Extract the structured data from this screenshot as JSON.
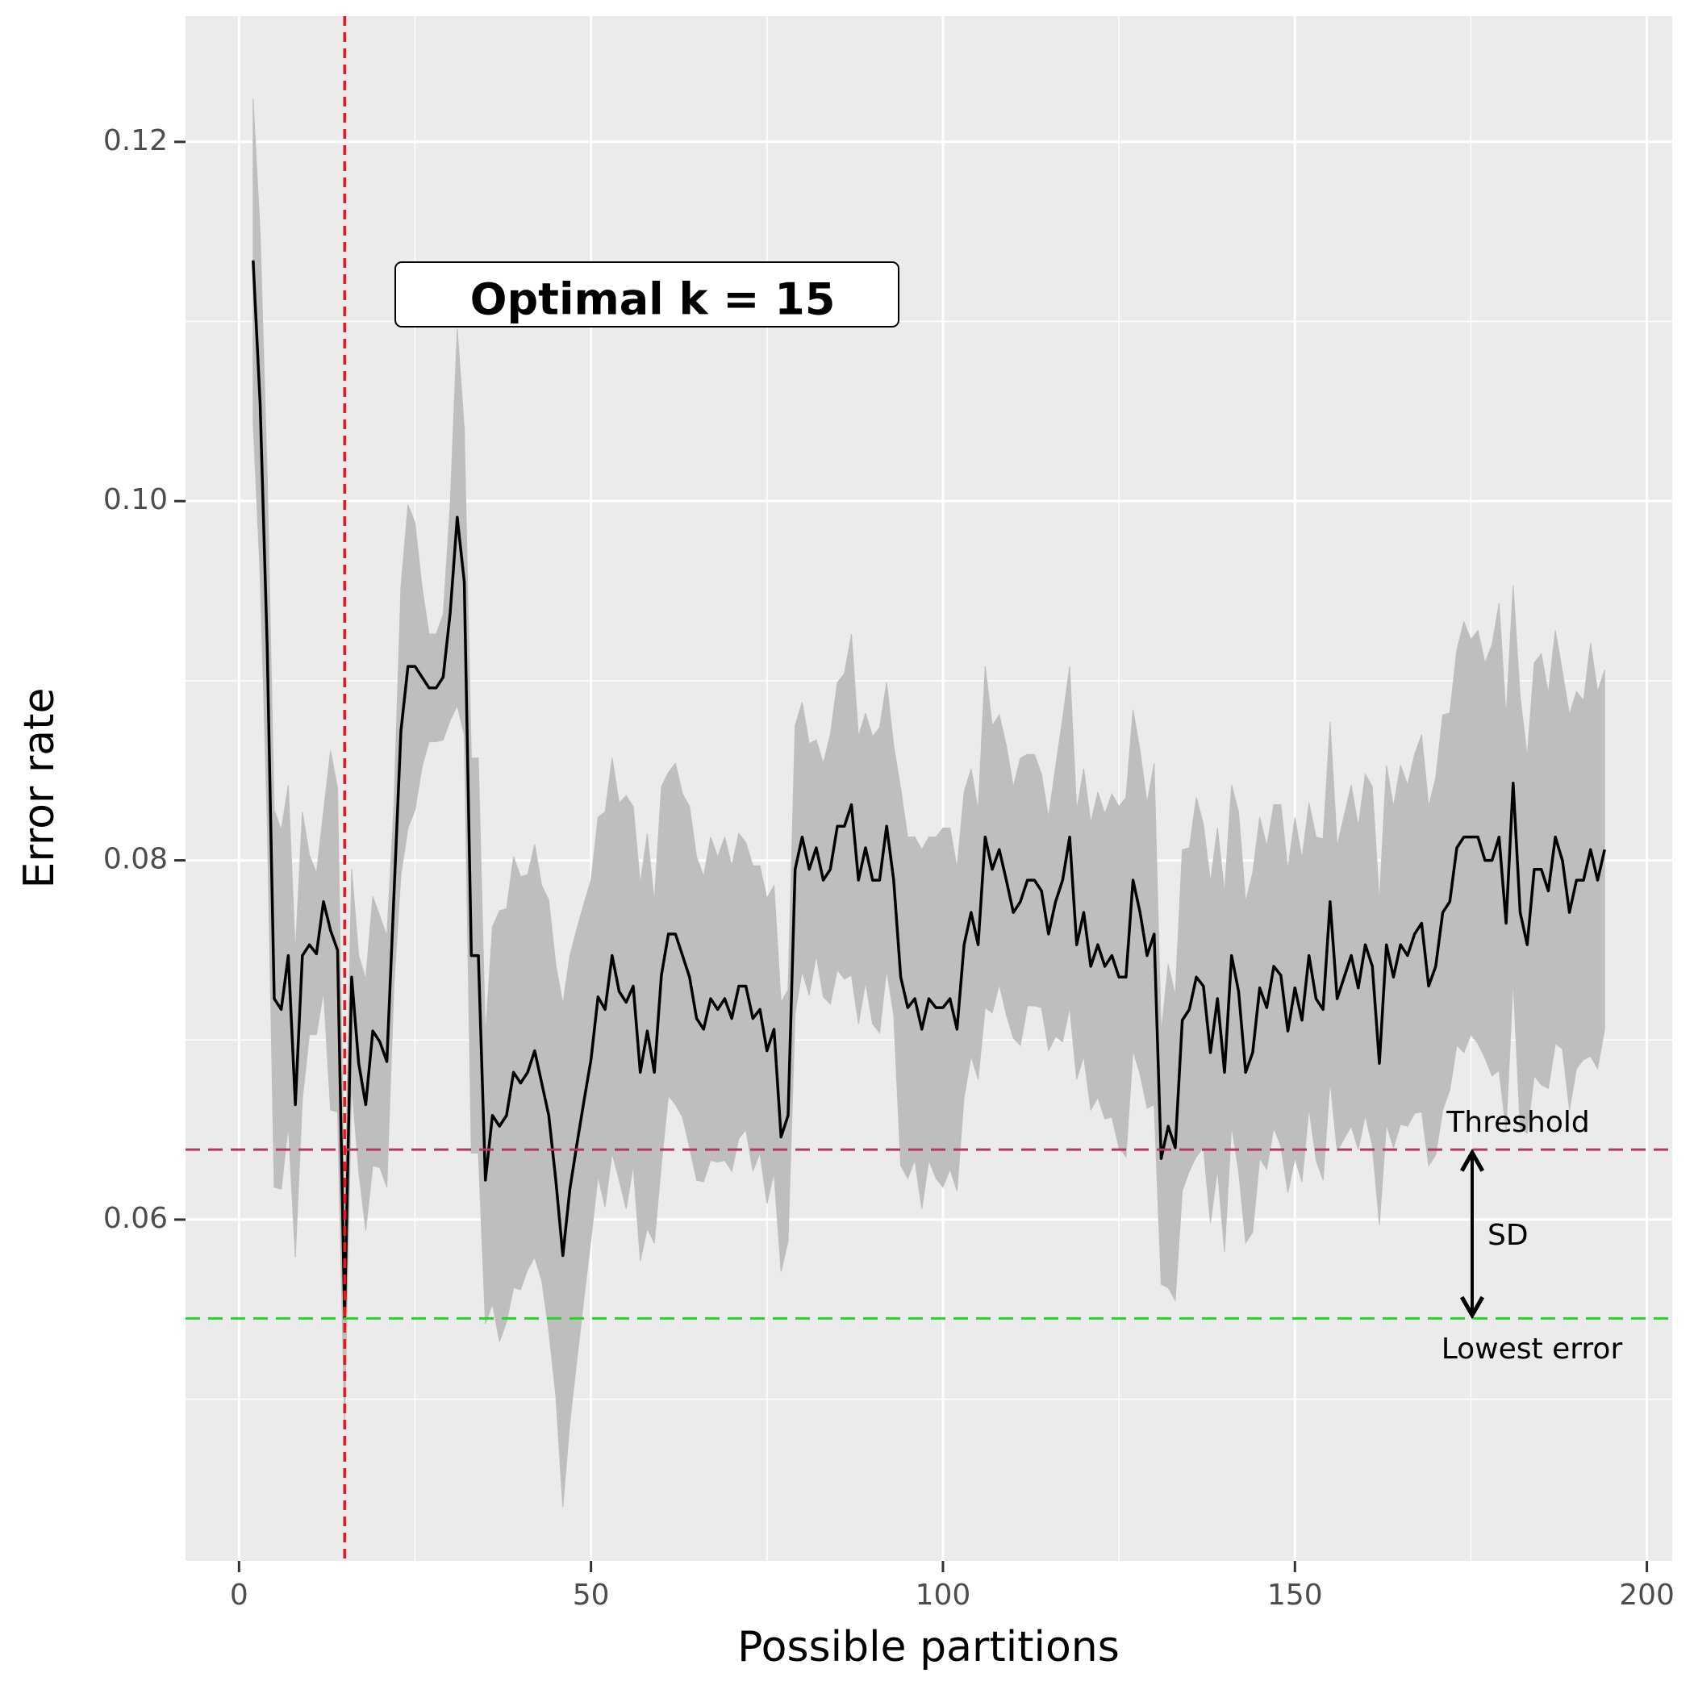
{
  "chart_data": {
    "type": "line",
    "x_label": "Possible partitions",
    "y_label": "Error rate",
    "x": [
      2,
      3,
      4,
      5,
      6,
      7,
      8,
      9,
      10,
      11,
      12,
      13,
      14,
      15,
      16,
      17,
      18,
      19,
      20,
      21,
      22,
      23,
      24,
      25,
      26,
      27,
      28,
      29,
      30,
      31,
      32,
      33,
      34,
      35,
      36,
      37,
      38,
      39,
      40,
      41,
      42,
      43,
      44,
      45,
      46,
      47,
      48,
      49,
      50,
      51,
      52,
      53,
      54,
      55,
      56,
      57,
      58,
      59,
      60,
      61,
      62,
      63,
      64,
      65,
      66,
      67,
      68,
      69,
      70,
      71,
      72,
      73,
      74,
      75,
      76,
      77,
      78,
      79,
      80,
      81,
      82,
      83,
      84,
      85,
      86,
      87,
      88,
      89,
      90,
      91,
      92,
      93,
      94,
      95,
      96,
      97,
      98,
      99,
      100,
      101,
      102,
      103,
      104,
      105,
      106,
      107,
      108,
      109,
      110,
      111,
      112,
      113,
      114,
      115,
      116,
      117,
      118,
      119,
      120,
      121,
      122,
      123,
      124,
      125,
      126,
      127,
      128,
      129,
      130,
      131,
      132,
      133,
      134,
      135,
      136,
      137,
      138,
      139,
      140,
      141,
      142,
      143,
      144,
      145,
      146,
      147,
      148,
      149,
      150,
      151,
      152,
      153,
      154,
      155,
      156,
      157,
      158,
      159,
      160,
      161,
      162,
      163,
      164,
      165,
      166,
      167,
      168,
      169,
      170,
      171,
      172,
      173,
      174,
      175,
      176,
      177,
      178,
      179,
      180,
      181,
      182,
      183,
      184,
      185,
      186,
      187,
      188,
      189,
      190,
      191,
      192,
      193,
      194
    ],
    "values": [
      0.1134,
      0.1054,
      0.0919,
      0.0723,
      0.0717,
      0.0747,
      0.0664,
      0.0747,
      0.0753,
      0.0748,
      0.0777,
      0.0761,
      0.075,
      0.0545,
      0.0735,
      0.0687,
      0.0664,
      0.0705,
      0.0699,
      0.0688,
      0.078,
      0.0872,
      0.0908,
      0.0908,
      0.0902,
      0.0896,
      0.0896,
      0.0902,
      0.0938,
      0.0991,
      0.0955,
      0.0747,
      0.0747,
      0.0622,
      0.0658,
      0.0652,
      0.0658,
      0.0682,
      0.0676,
      0.0682,
      0.0694,
      0.0676,
      0.0658,
      0.0622,
      0.058,
      0.0617,
      0.0642,
      0.0666,
      0.0689,
      0.0724,
      0.0717,
      0.0747,
      0.0727,
      0.0721,
      0.073,
      0.0682,
      0.0705,
      0.0682,
      0.0736,
      0.0759,
      0.0759,
      0.0747,
      0.0735,
      0.0712,
      0.0706,
      0.0723,
      0.0717,
      0.0723,
      0.0712,
      0.073,
      0.073,
      0.0712,
      0.0717,
      0.0694,
      0.0706,
      0.0646,
      0.0658,
      0.0795,
      0.0813,
      0.0795,
      0.0807,
      0.0789,
      0.0795,
      0.0819,
      0.0819,
      0.0831,
      0.0789,
      0.0807,
      0.0789,
      0.0789,
      0.0819,
      0.0789,
      0.0735,
      0.0718,
      0.0723,
      0.0706,
      0.0723,
      0.0718,
      0.0718,
      0.0723,
      0.0706,
      0.0753,
      0.0771,
      0.0753,
      0.0813,
      0.0795,
      0.0806,
      0.0789,
      0.0771,
      0.0777,
      0.0789,
      0.0789,
      0.0783,
      0.0759,
      0.0777,
      0.0789,
      0.0813,
      0.0753,
      0.0771,
      0.0741,
      0.0753,
      0.0741,
      0.0747,
      0.0735,
      0.0735,
      0.0789,
      0.0771,
      0.0747,
      0.0759,
      0.0634,
      0.0652,
      0.064,
      0.0711,
      0.0717,
      0.0735,
      0.073,
      0.0693,
      0.0723,
      0.0682,
      0.0747,
      0.0727,
      0.0682,
      0.0693,
      0.0729,
      0.0718,
      0.0741,
      0.0736,
      0.0705,
      0.0729,
      0.0711,
      0.0747,
      0.0723,
      0.0717,
      0.0777,
      0.0723,
      0.0735,
      0.0747,
      0.0729,
      0.0753,
      0.0741,
      0.0687,
      0.0753,
      0.0735,
      0.0753,
      0.0747,
      0.0759,
      0.0765,
      0.073,
      0.0741,
      0.0771,
      0.0777,
      0.0807,
      0.0813,
      0.0813,
      0.0813,
      0.08,
      0.08,
      0.0813,
      0.0765,
      0.0843,
      0.0771,
      0.0753,
      0.0795,
      0.0795,
      0.0783,
      0.0813,
      0.08,
      0.0771,
      0.0789,
      0.0789,
      0.0806,
      0.0789,
      0.0806
    ],
    "sd": [
      0.009,
      0.0095,
      0.0095,
      0.0105,
      0.01,
      0.0095,
      0.0085,
      0.008,
      0.005,
      0.0045,
      0.005,
      0.01,
      0.009,
      0.006,
      0.006,
      0.006,
      0.007,
      0.0075,
      0.007,
      0.007,
      0.005,
      0.008,
      0.009,
      0.008,
      0.005,
      0.003,
      0.003,
      0.0035,
      0.006,
      0.0105,
      0.0085,
      0.011,
      0.011,
      0.008,
      0.0105,
      0.012,
      0.0115,
      0.012,
      0.0115,
      0.011,
      0.0115,
      0.011,
      0.012,
      0.012,
      0.014,
      0.013,
      0.012,
      0.011,
      0.01,
      0.01,
      0.011,
      0.011,
      0.0105,
      0.0115,
      0.01,
      0.0105,
      0.011,
      0.0095,
      0.0105,
      0.009,
      0.0095,
      0.009,
      0.0095,
      0.009,
      0.0085,
      0.009,
      0.0085,
      0.009,
      0.0085,
      0.0085,
      0.008,
      0.0085,
      0.008,
      0.0085,
      0.008,
      0.0075,
      0.007,
      0.008,
      0.0075,
      0.007,
      0.006,
      0.0065,
      0.0075,
      0.008,
      0.0085,
      0.0095,
      0.008,
      0.0075,
      0.008,
      0.0085,
      0.008,
      0.0075,
      0.0105,
      0.0095,
      0.009,
      0.01,
      0.009,
      0.0095,
      0.01,
      0.0095,
      0.009,
      0.0085,
      0.008,
      0.0075,
      0.0095,
      0.008,
      0.0075,
      0.0075,
      0.007,
      0.008,
      0.007,
      0.007,
      0.0065,
      0.0065,
      0.0075,
      0.009,
      0.0095,
      0.0075,
      0.008,
      0.008,
      0.0085,
      0.0085,
      0.009,
      0.0095,
      0.01,
      0.0095,
      0.009,
      0.0085,
      0.0095,
      0.007,
      0.009,
      0.0085,
      0.0095,
      0.009,
      0.01,
      0.009,
      0.0095,
      0.0095,
      0.01,
      0.0095,
      0.01,
      0.0095,
      0.01,
      0.0095,
      0.009,
      0.009,
      0.0095,
      0.009,
      0.0095,
      0.009,
      0.0085,
      0.009,
      0.0095,
      0.01,
      0.0085,
      0.009,
      0.0095,
      0.009,
      0.0095,
      0.01,
      0.009,
      0.01,
      0.0095,
      0.01,
      0.0095,
      0.01,
      0.0105,
      0.01,
      0.0105,
      0.011,
      0.0105,
      0.011,
      0.012,
      0.011,
      0.0115,
      0.011,
      0.012,
      0.013,
      0.0115,
      0.011,
      0.012,
      0.0105,
      0.0115,
      0.012,
      0.011,
      0.0115,
      0.0105,
      0.011,
      0.0105,
      0.01,
      0.0115,
      0.0105,
      0.01
    ],
    "color": "#000000",
    "ribbon_color": "#BEBEBE",
    "xlim": [
      -7.6,
      203.6
    ],
    "ylim": [
      0.041,
      0.127
    ],
    "xticks": [
      0,
      50,
      100,
      150,
      200
    ],
    "x_minor_ticks": [
      25,
      75,
      125,
      175
    ],
    "yticks": [
      0.06,
      0.08,
      {
        "value": 0.1,
        "label": "0.10"
      },
      0.12
    ],
    "y_minor_ticks": [
      0.05,
      0.07,
      0.09,
      0.11
    ],
    "grid": true,
    "optimal_k": 15,
    "optimal_color": "#E31A1C",
    "threshold": 0.0639,
    "threshold_color": "#B03A62",
    "lowest_error": 0.0545,
    "lowest_color": "#00EE00",
    "annotations": {
      "optimal": "Optimal k = 15",
      "threshold": "Threshold",
      "sd": "SD",
      "lowest": "Lowest error"
    }
  }
}
